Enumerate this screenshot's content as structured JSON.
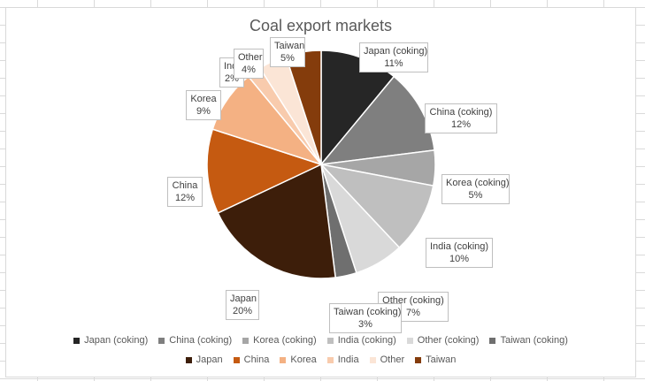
{
  "chart_data": {
    "type": "pie",
    "title": "Coal export markets",
    "slices": [
      {
        "label": "Japan (coking)",
        "value": 11,
        "display": "11%",
        "color": "#262626"
      },
      {
        "label": "China (coking)",
        "value": 12,
        "display": "12%",
        "color": "#7f7f7f"
      },
      {
        "label": "Korea (coking)",
        "value": 5,
        "display": "5%",
        "color": "#a6a6a6"
      },
      {
        "label": "India (coking)",
        "value": 10,
        "display": "10%",
        "color": "#bfbfbf"
      },
      {
        "label": "Other (coking)",
        "value": 7,
        "display": "7%",
        "color": "#d9d9d9"
      },
      {
        "label": "Taiwan (coking)",
        "value": 3,
        "display": "3%",
        "color": "#6f6f6f"
      },
      {
        "label": "Japan",
        "value": 20,
        "display": "20%",
        "color": "#3d1e0a"
      },
      {
        "label": "China",
        "value": 12,
        "display": "12%",
        "color": "#c55a11"
      },
      {
        "label": "Korea",
        "value": 9,
        "display": "9%",
        "color": "#f4b183"
      },
      {
        "label": "India",
        "value": 2,
        "display": "2%",
        "color": "#f8cbad"
      },
      {
        "label": "Other",
        "value": 4,
        "display": "4%",
        "color": "#fbe5d6"
      },
      {
        "label": "Taiwan",
        "value": 5,
        "display": "5%",
        "color": "#843c0c"
      }
    ],
    "legend_position": "bottom",
    "data_labels": "callouts"
  }
}
